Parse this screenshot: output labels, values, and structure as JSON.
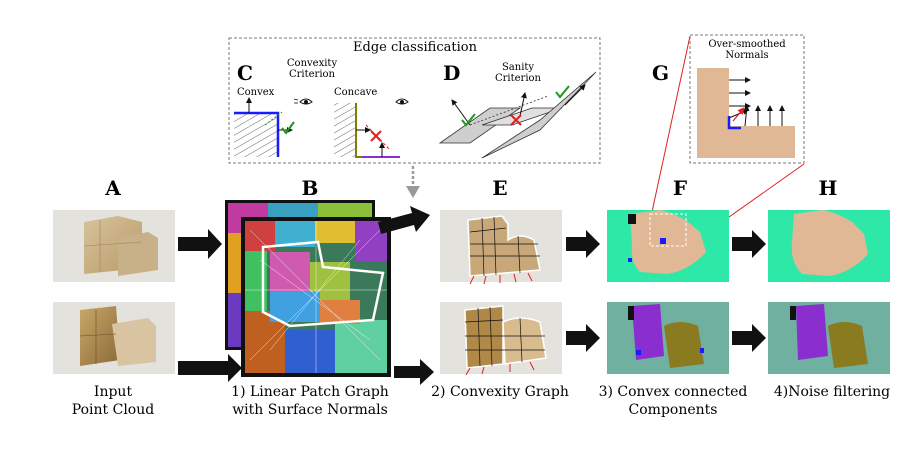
{
  "edge_box": {
    "title": "Edge classification",
    "c_letter": "C",
    "convexity_criterion_line1": "Convexity",
    "convexity_criterion_line2": "Criterion",
    "convex_label": "Convex",
    "concave_label": "Concave",
    "d_letter": "D",
    "sanity_criterion_line1": "Sanity",
    "sanity_criterion_line2": "Criterion"
  },
  "g_box": {
    "letter": "G",
    "title_line1": "Over-smoothed",
    "title_line2": "Normals"
  },
  "panels": {
    "a_letter": "A",
    "b_letter": "B",
    "e_letter": "E",
    "f_letter": "F",
    "h_letter": "H"
  },
  "captions": {
    "input_line1": "Input",
    "input_line2": "Point Cloud",
    "step1_line1": "1) Linear Patch Graph",
    "step1_line2": "with Surface Normals",
    "step2": "2) Convexity Graph",
    "step3_line1": "3) Convex connected",
    "step3_line2": "Components",
    "step4": "4)Noise filtering"
  },
  "colors": {
    "convex_blue": "#1a1aff",
    "concave_olive": "#808000",
    "check_green": "#1a9a1a",
    "cross_red": "#e02020",
    "mint_bg": "#2ee8a8",
    "teal_bg": "#6fb0a0",
    "skin": "#e0b896",
    "purple": "#8a2ed0",
    "olive_seg": "#8a7a20"
  }
}
